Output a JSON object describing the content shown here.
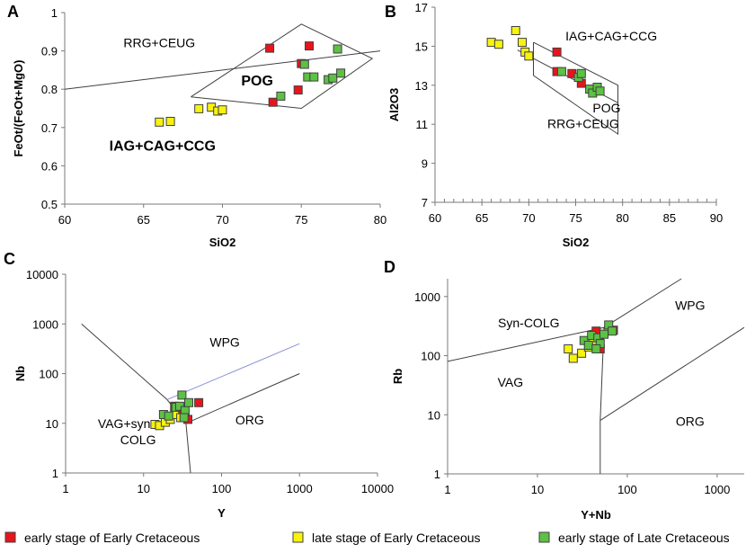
{
  "colors": {
    "early_EK": "#e8141c",
    "late_EK": "#f7f30d",
    "early_LK": "#5cc144",
    "edge": "#404040"
  },
  "legend": [
    {
      "series": "early_EK",
      "label": "early stage of Early Cretaceous"
    },
    {
      "series": "late_EK",
      "label": "late stage of Early Cretaceous"
    },
    {
      "series": "early_LK",
      "label": "early stage of Late Cretaceous"
    }
  ],
  "chart_data": [
    {
      "id": "A",
      "panel_label": "A",
      "type": "scatter",
      "xlabel": "SiO2",
      "ylabel": "FeOt/(FeOt+MgO)",
      "xlim": [
        60,
        80
      ],
      "ylim": [
        0.5,
        1
      ],
      "xticks": [
        60,
        65,
        70,
        75,
        80
      ],
      "yticks": [
        0.5,
        0.6,
        0.7,
        0.8,
        0.9,
        1
      ],
      "tick_labels_x": [
        "60",
        "65",
        "70",
        "75",
        "80"
      ],
      "tick_labels_y": [
        "0.5",
        "0.6",
        "0.7",
        "0.8",
        "0.9",
        "1"
      ],
      "regions": [
        {
          "text": "RRG+CEUG",
          "x": 66,
          "y": 0.91,
          "bold": false
        },
        {
          "text": "POG",
          "x": 72.2,
          "y": 0.81,
          "bold": true
        },
        {
          "text": "IAG+CAG+CCG",
          "x": 66.2,
          "y": 0.64,
          "bold": true
        }
      ],
      "lines": [
        [
          [
            60,
            0.8
          ],
          [
            80,
            0.9
          ]
        ],
        [
          [
            68,
            0.78
          ],
          [
            75,
            0.97
          ],
          [
            79.5,
            0.88
          ],
          [
            75,
            0.75
          ],
          [
            68,
            0.78
          ]
        ]
      ],
      "series": [
        {
          "name": "early_EK",
          "points": [
            [
              73,
              0.907
            ],
            [
              75.5,
              0.913
            ],
            [
              75,
              0.867
            ],
            [
              74.8,
              0.798
            ],
            [
              73.2,
              0.766
            ]
          ]
        },
        {
          "name": "late_EK",
          "points": [
            [
              66,
              0.714
            ],
            [
              66.7,
              0.716
            ],
            [
              68.5,
              0.749
            ],
            [
              69.3,
              0.753
            ],
            [
              69.7,
              0.743
            ],
            [
              70,
              0.746
            ]
          ]
        },
        {
          "name": "early_LK",
          "points": [
            [
              75.2,
              0.865
            ],
            [
              75.4,
              0.832
            ],
            [
              75.8,
              0.832
            ],
            [
              76.7,
              0.825
            ],
            [
              77,
              0.829
            ],
            [
              77.5,
              0.842
            ],
            [
              77.3,
              0.905
            ],
            [
              73.7,
              0.782
            ]
          ]
        }
      ]
    },
    {
      "id": "B",
      "panel_label": "B",
      "type": "scatter",
      "xlabel": "SiO2",
      "ylabel": "Al2O3",
      "xlim": [
        60,
        90
      ],
      "ylim": [
        7,
        17
      ],
      "xticks": [
        60,
        65,
        70,
        75,
        80,
        85,
        90
      ],
      "yticks": [
        7,
        9,
        11,
        13,
        15,
        17
      ],
      "tick_labels_x": [
        "60",
        "65",
        "70",
        "75",
        "80",
        "85",
        "90"
      ],
      "tick_labels_y": [
        "7",
        "9",
        "11",
        "13",
        "15",
        "17"
      ],
      "regions": [
        {
          "text": "IAG+CAG+CCG",
          "x": 78.8,
          "y": 15.3,
          "bold": false
        },
        {
          "text": "POG",
          "x": 78.3,
          "y": 11.6,
          "bold": false
        },
        {
          "text": "RRG+CEUG",
          "x": 75.8,
          "y": 10.8,
          "bold": false
        }
      ],
      "lines": [
        [
          [
            68.8,
            14.8
          ],
          [
            79.5,
            12.1
          ]
        ],
        [
          [
            70.5,
            15.2
          ],
          [
            79.5,
            13.0
          ],
          [
            79.5,
            10.5
          ],
          [
            70.5,
            13.5
          ],
          [
            70.5,
            15.2
          ]
        ]
      ],
      "series": [
        {
          "name": "early_EK",
          "points": [
            [
              73,
              14.7
            ],
            [
              73,
              13.7
            ],
            [
              74.6,
              13.6
            ],
            [
              75.6,
              13.1
            ]
          ]
        },
        {
          "name": "late_EK",
          "points": [
            [
              66,
              15.2
            ],
            [
              66.8,
              15.1
            ],
            [
              68.6,
              15.8
            ],
            [
              69.3,
              15.2
            ],
            [
              69.6,
              14.7
            ],
            [
              70,
              14.5
            ]
          ]
        },
        {
          "name": "early_LK",
          "points": [
            [
              73.5,
              13.7
            ],
            [
              75.3,
              13.4
            ],
            [
              75.6,
              13.6
            ],
            [
              76.5,
              12.8
            ],
            [
              76.8,
              12.6
            ],
            [
              77.3,
              12.9
            ],
            [
              77.6,
              12.7
            ]
          ]
        }
      ]
    },
    {
      "id": "C",
      "panel_label": "C",
      "type": "scatter",
      "scale": "log",
      "xlabel": "Y",
      "ylabel": "Nb",
      "xlim": [
        1,
        10000
      ],
      "ylim": [
        1,
        10000
      ],
      "xticks": [
        1,
        10,
        100,
        1000,
        10000
      ],
      "yticks": [
        1,
        10,
        100,
        1000,
        10000
      ],
      "tick_labels_x": [
        "1",
        "10",
        "100",
        "1000",
        "10000"
      ],
      "tick_labels_y": [
        "1",
        "10",
        "100",
        "1000",
        "10000"
      ],
      "regions": [
        {
          "text": "WPG",
          "x": 110,
          "y": 350,
          "bold": false
        },
        {
          "text": "ORG",
          "x": 230,
          "y": 9.5,
          "bold": false
        },
        {
          "text": "VAG+syn-",
          "x": 6,
          "y": 8,
          "bold": false
        },
        {
          "text": "COLG",
          "x": 8.5,
          "y": 3.8,
          "bold": false
        }
      ],
      "lines": [
        [
          [
            1.6,
            1000
          ],
          [
            20,
            30
          ],
          [
            35,
            10
          ],
          [
            40,
            1
          ]
        ],
        [
          [
            20,
            30
          ],
          [
            1000,
            400
          ]
        ],
        [
          [
            35,
            10
          ],
          [
            1000,
            100
          ]
        ]
      ],
      "series": [
        {
          "name": "early_EK",
          "points": [
            [
              25,
              22
            ],
            [
              30,
              15
            ],
            [
              37,
              12
            ],
            [
              51,
              26
            ],
            [
              28,
              18
            ]
          ]
        },
        {
          "name": "late_EK",
          "points": [
            [
              14,
              9.5
            ],
            [
              16,
              9
            ],
            [
              19,
              10.5
            ],
            [
              22,
              12
            ],
            [
              25,
              15
            ],
            [
              30,
              13
            ]
          ]
        },
        {
          "name": "early_LK",
          "points": [
            [
              18,
              15
            ],
            [
              21,
              14
            ],
            [
              26,
              21
            ],
            [
              29,
              22
            ],
            [
              31,
              37
            ],
            [
              34,
              18
            ],
            [
              38,
              26
            ],
            [
              33,
              13
            ]
          ]
        }
      ]
    },
    {
      "id": "D",
      "panel_label": "D",
      "type": "scatter",
      "scale": "log",
      "xlabel": "Y+Nb",
      "ylabel": "Rb",
      "xlim": [
        1,
        2000
      ],
      "ylim": [
        1,
        2000
      ],
      "xticks": [
        1,
        10,
        100,
        1000
      ],
      "yticks": [
        1,
        10,
        100,
        1000
      ],
      "tick_labels_x": [
        "1",
        "10",
        "100",
        "1000"
      ],
      "tick_labels_y": [
        "1",
        "10",
        "100",
        "1000"
      ],
      "regions": [
        {
          "text": "Syn-COLG",
          "x": 8,
          "y": 300,
          "bold": false
        },
        {
          "text": "WPG",
          "x": 500,
          "y": 600,
          "bold": false
        },
        {
          "text": "VAG",
          "x": 5,
          "y": 30,
          "bold": false
        },
        {
          "text": "ORG",
          "x": 500,
          "y": 6.5,
          "bold": false
        }
      ],
      "lines": [
        [
          [
            1,
            80
          ],
          [
            55,
            300
          ],
          [
            50,
            8
          ],
          [
            50,
            1
          ]
        ],
        [
          [
            55,
            300
          ],
          [
            400,
            2000
          ]
        ],
        [
          [
            50,
            8
          ],
          [
            2000,
            300
          ]
        ]
      ],
      "series": [
        {
          "name": "early_EK",
          "points": [
            [
              45,
              260
            ],
            [
              70,
              270
            ],
            [
              48,
              170
            ],
            [
              43,
              160
            ],
            [
              50,
              130
            ]
          ]
        },
        {
          "name": "late_EK",
          "points": [
            [
              22,
              130
            ],
            [
              25,
              90
            ],
            [
              31,
              110
            ],
            [
              37,
              140
            ],
            [
              42,
              180
            ]
          ]
        },
        {
          "name": "early_LK",
          "points": [
            [
              33,
              180
            ],
            [
              37,
              150
            ],
            [
              40,
              220
            ],
            [
              47,
              200
            ],
            [
              50,
              160
            ],
            [
              55,
              230
            ],
            [
              62,
              330
            ],
            [
              68,
              260
            ],
            [
              45,
              130
            ]
          ]
        }
      ]
    }
  ]
}
